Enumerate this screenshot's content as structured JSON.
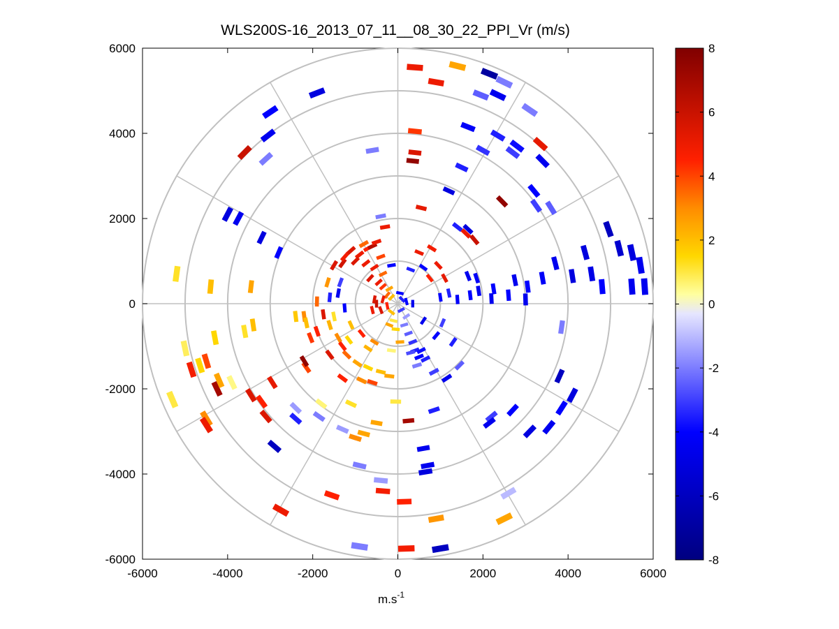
{
  "chart_data": {
    "type": "polar-ppi-scatter",
    "title": "WLS200S-16_2013_07_11__08_30_22_PPI_Vr (m/s)",
    "xlabel": {
      "base": "m.s",
      "superscript": "-1"
    },
    "ylabel": "",
    "xlim": [
      -6000,
      6000
    ],
    "ylim": [
      -6000,
      6000
    ],
    "x_ticks": [
      -6000,
      -4000,
      -2000,
      0,
      2000,
      4000,
      6000
    ],
    "y_ticks": [
      6000,
      4000,
      2000,
      0,
      -2000,
      -4000,
      -6000
    ],
    "x_tick_labels": [
      "-6000",
      "-4000",
      "-2000",
      "0",
      "2000",
      "4000",
      "6000"
    ],
    "y_tick_labels": [
      "6000",
      "4000",
      "2000",
      "0",
      "-2000",
      "-4000",
      "-6000"
    ],
    "range_rings_m": [
      1000,
      2000,
      3000,
      4000,
      5000,
      6000
    ],
    "radial_spokes_deg": [
      0,
      30,
      60,
      90,
      120,
      150,
      180,
      210,
      240,
      270,
      300,
      330
    ],
    "colorbar": {
      "min": -8,
      "max": 8,
      "ticks": [
        8,
        6,
        4,
        2,
        0,
        -2,
        -4,
        -6,
        -8
      ],
      "tick_labels": [
        "8",
        "6",
        "4",
        "2",
        "0",
        "-2",
        "-4",
        "-6",
        "-8"
      ],
      "stops": [
        {
          "v": -8,
          "color": "#000080"
        },
        {
          "v": -4,
          "color": "#0000ff"
        },
        {
          "v": -0.3,
          "color": "#e6e6ff"
        },
        {
          "v": 0.3,
          "color": "#ffffa0"
        },
        {
          "v": 1.5,
          "color": "#ffd700"
        },
        {
          "v": 3,
          "color": "#ff8c00"
        },
        {
          "v": 4.5,
          "color": "#ff2000"
        },
        {
          "v": 8,
          "color": "#800000"
        }
      ]
    },
    "points": [
      {
        "x": 400,
        "y": 5550,
        "v": 5
      },
      {
        "x": 1400,
        "y": 5580,
        "v": 2.5
      },
      {
        "x": 2150,
        "y": 5400,
        "v": -7
      },
      {
        "x": 2500,
        "y": 5200,
        "v": -2
      },
      {
        "x": 900,
        "y": 5200,
        "v": 5
      },
      {
        "x": 1950,
        "y": 4900,
        "v": -2.5
      },
      {
        "x": 2350,
        "y": 4900,
        "v": -4.5
      },
      {
        "x": 3100,
        "y": 4550,
        "v": -2
      },
      {
        "x": 1650,
        "y": 4150,
        "v": -4.2
      },
      {
        "x": 2350,
        "y": 3950,
        "v": -3.5
      },
      {
        "x": 2800,
        "y": 3700,
        "v": -3.8
      },
      {
        "x": 3350,
        "y": 3750,
        "v": 5.2
      },
      {
        "x": 400,
        "y": 4050,
        "v": 4.2
      },
      {
        "x": 2000,
        "y": 3600,
        "v": -3.2
      },
      {
        "x": 2700,
        "y": 3550,
        "v": -3
      },
      {
        "x": 3400,
        "y": 3350,
        "v": -4.5
      },
      {
        "x": 1500,
        "y": 3200,
        "v": -3.5
      },
      {
        "x": 400,
        "y": 3550,
        "v": 5.5
      },
      {
        "x": 350,
        "y": 3350,
        "v": 7.5
      },
      {
        "x": 1200,
        "y": 2650,
        "v": -5
      },
      {
        "x": 3200,
        "y": 2650,
        "v": -4
      },
      {
        "x": 2450,
        "y": 2400,
        "v": 7.5
      },
      {
        "x": 3250,
        "y": 2300,
        "v": -3
      },
      {
        "x": 3600,
        "y": 2250,
        "v": -2.5
      },
      {
        "x": 550,
        "y": 2250,
        "v": 5.2
      },
      {
        "x": 1400,
        "y": 1800,
        "v": -3.5
      },
      {
        "x": 1650,
        "y": 1750,
        "v": -5
      },
      {
        "x": 1800,
        "y": 1500,
        "v": 6
      },
      {
        "x": 1600,
        "y": 1650,
        "v": 5
      },
      {
        "x": -1900,
        "y": 4950,
        "v": -5
      },
      {
        "x": -3000,
        "y": 4500,
        "v": -4
      },
      {
        "x": -3050,
        "y": 3950,
        "v": -4.5
      },
      {
        "x": -3600,
        "y": 3550,
        "v": 6
      },
      {
        "x": -3100,
        "y": 3400,
        "v": -2
      },
      {
        "x": -600,
        "y": 3600,
        "v": -2
      },
      {
        "x": -4000,
        "y": 2100,
        "v": -5
      },
      {
        "x": -3750,
        "y": 2000,
        "v": -4.5
      },
      {
        "x": -3200,
        "y": 1550,
        "v": -5
      },
      {
        "x": -2800,
        "y": 1200,
        "v": -4
      },
      {
        "x": 4950,
        "y": 1750,
        "v": -6
      },
      {
        "x": 5200,
        "y": 1300,
        "v": -5.5
      },
      {
        "x": 5500,
        "y": 1200,
        "v": -5
      },
      {
        "x": 5700,
        "y": 900,
        "v": -4.5
      },
      {
        "x": 4400,
        "y": 1200,
        "v": -5
      },
      {
        "x": 3700,
        "y": 950,
        "v": -4.5
      },
      {
        "x": 4100,
        "y": 650,
        "v": -5
      },
      {
        "x": 4550,
        "y": 700,
        "v": -4.8
      },
      {
        "x": 3400,
        "y": 600,
        "v": -4.2
      },
      {
        "x": 2750,
        "y": 550,
        "v": -4.5
      },
      {
        "x": 3050,
        "y": 400,
        "v": -4
      },
      {
        "x": 5500,
        "y": 400,
        "v": -4.5
      },
      {
        "x": 5800,
        "y": 400,
        "v": -4.5
      },
      {
        "x": 4800,
        "y": 400,
        "v": -4
      },
      {
        "x": 2250,
        "y": 350,
        "v": -4
      },
      {
        "x": 1900,
        "y": 300,
        "v": -4.5
      },
      {
        "x": 2600,
        "y": 200,
        "v": -4
      },
      {
        "x": 3000,
        "y": 100,
        "v": -4.5
      },
      {
        "x": 1700,
        "y": 200,
        "v": -4
      },
      {
        "x": 1400,
        "y": 100,
        "v": -4.2
      },
      {
        "x": 2200,
        "y": 120,
        "v": -4.5
      },
      {
        "x": 1200,
        "y": 250,
        "v": -3.5
      },
      {
        "x": 1000,
        "y": 150,
        "v": -4
      },
      {
        "x": 3850,
        "y": -550,
        "v": -2
      },
      {
        "x": 3800,
        "y": -1700,
        "v": -6
      },
      {
        "x": 4100,
        "y": -2150,
        "v": -5
      },
      {
        "x": 3850,
        "y": -2450,
        "v": -4
      },
      {
        "x": 3550,
        "y": -2900,
        "v": -4.5
      },
      {
        "x": 3100,
        "y": -3000,
        "v": -5
      },
      {
        "x": 2700,
        "y": -2500,
        "v": -4
      },
      {
        "x": 2200,
        "y": -2650,
        "v": -3
      },
      {
        "x": 2150,
        "y": -2800,
        "v": -4.5
      },
      {
        "x": 850,
        "y": -2500,
        "v": -3.5
      },
      {
        "x": 1150,
        "y": -1750,
        "v": -4.5
      },
      {
        "x": 600,
        "y": -3400,
        "v": -4.5
      },
      {
        "x": 700,
        "y": -3800,
        "v": -4.5
      },
      {
        "x": 650,
        "y": -3950,
        "v": -5
      },
      {
        "x": 2600,
        "y": -4450,
        "v": -1
      },
      {
        "x": 2500,
        "y": -5050,
        "v": 2.5
      },
      {
        "x": 900,
        "y": -5050,
        "v": 2.8
      },
      {
        "x": 150,
        "y": -4650,
        "v": 4.5
      },
      {
        "x": 200,
        "y": -5750,
        "v": 4.8
      },
      {
        "x": 1000,
        "y": -5750,
        "v": -6
      },
      {
        "x": 250,
        "y": -2750,
        "v": 7
      },
      {
        "x": 850,
        "y": -1600,
        "v": -3
      },
      {
        "x": -2400,
        "y": -2450,
        "v": -1.5
      },
      {
        "x": -1800,
        "y": -2350,
        "v": 0.6
      },
      {
        "x": -1850,
        "y": -2650,
        "v": -2
      },
      {
        "x": -1100,
        "y": -2350,
        "v": 1.2
      },
      {
        "x": -2400,
        "y": -2700,
        "v": -3.5
      },
      {
        "x": -1300,
        "y": -2950,
        "v": -1.5
      },
      {
        "x": -800,
        "y": -3050,
        "v": 2.5
      },
      {
        "x": -1000,
        "y": -3150,
        "v": 3
      },
      {
        "x": -500,
        "y": -2800,
        "v": 2.5
      },
      {
        "x": -50,
        "y": -2300,
        "v": 1
      },
      {
        "x": -3450,
        "y": -2150,
        "v": 5.5
      },
      {
        "x": -3200,
        "y": -2300,
        "v": 4.5
      },
      {
        "x": -3100,
        "y": -2650,
        "v": 5.5
      },
      {
        "x": -2950,
        "y": -1850,
        "v": 5.2
      },
      {
        "x": -2150,
        "y": -1500,
        "v": 4
      },
      {
        "x": -4250,
        "y": -2000,
        "v": 7
      },
      {
        "x": -4500,
        "y": -2700,
        "v": 3
      },
      {
        "x": -4500,
        "y": -2850,
        "v": 5
      },
      {
        "x": -4200,
        "y": -1800,
        "v": 2.5
      },
      {
        "x": -3900,
        "y": -1850,
        "v": 0.5
      },
      {
        "x": -5000,
        "y": -1050,
        "v": 0.8
      },
      {
        "x": -5300,
        "y": -2250,
        "v": 1
      },
      {
        "x": -4850,
        "y": -1550,
        "v": 4.8
      },
      {
        "x": -4650,
        "y": -1450,
        "v": 1.5
      },
      {
        "x": -2200,
        "y": -1350,
        "v": 7.5
      },
      {
        "x": -2900,
        "y": -3350,
        "v": -6
      },
      {
        "x": -900,
        "y": -3800,
        "v": -2
      },
      {
        "x": -350,
        "y": -4400,
        "v": 4.8
      },
      {
        "x": -400,
        "y": -4150,
        "v": -1.5
      },
      {
        "x": -1550,
        "y": -4500,
        "v": 4.5
      },
      {
        "x": -2750,
        "y": -4850,
        "v": 5
      },
      {
        "x": -900,
        "y": -5700,
        "v": -2
      },
      {
        "x": -2400,
        "y": -300,
        "v": 1.8
      },
      {
        "x": -2200,
        "y": -300,
        "v": 3
      },
      {
        "x": -3450,
        "y": 400,
        "v": 2.5
      },
      {
        "x": -3600,
        "y": -650,
        "v": 1.2
      },
      {
        "x": -3400,
        "y": -500,
        "v": 2
      },
      {
        "x": -4400,
        "y": 400,
        "v": 2
      },
      {
        "x": -4300,
        "y": -800,
        "v": 1.5
      },
      {
        "x": -5200,
        "y": 700,
        "v": 1.2
      },
      {
        "x": -4500,
        "y": -1350,
        "v": 4
      },
      {
        "x": -700,
        "y": 1300,
        "v": 4.5
      },
      {
        "x": -900,
        "y": 1150,
        "v": 5
      },
      {
        "x": -1000,
        "y": 1000,
        "v": 5.5
      },
      {
        "x": -750,
        "y": 950,
        "v": 5
      },
      {
        "x": -550,
        "y": 850,
        "v": 5
      },
      {
        "x": -650,
        "y": 600,
        "v": 5.5
      },
      {
        "x": -450,
        "y": 500,
        "v": 5
      },
      {
        "x": -350,
        "y": 400,
        "v": 4.2
      },
      {
        "x": -250,
        "y": 200,
        "v": 3.5
      },
      {
        "x": -150,
        "y": 150,
        "v": 2
      },
      {
        "x": -1100,
        "y": 1250,
        "v": 5.5
      },
      {
        "x": -800,
        "y": 1400,
        "v": 3.5
      },
      {
        "x": -1300,
        "y": 950,
        "v": 5.8
      },
      {
        "x": -1250,
        "y": 1100,
        "v": 4.8
      },
      {
        "x": -1500,
        "y": 900,
        "v": 5.5
      },
      {
        "x": -600,
        "y": 1350,
        "v": 6.5
      },
      {
        "x": -500,
        "y": 1450,
        "v": 5
      },
      {
        "x": -400,
        "y": 1100,
        "v": 4
      },
      {
        "x": -350,
        "y": 700,
        "v": 3.5
      },
      {
        "x": -200,
        "y": 350,
        "v": 2.5
      },
      {
        "x": -350,
        "y": 100,
        "v": 5
      },
      {
        "x": -500,
        "y": 0,
        "v": 6
      },
      {
        "x": -400,
        "y": -150,
        "v": 5.5
      },
      {
        "x": -250,
        "y": -50,
        "v": 4.5
      },
      {
        "x": -150,
        "y": -200,
        "v": 2
      },
      {
        "x": -100,
        "y": -400,
        "v": 1
      },
      {
        "x": -50,
        "y": -600,
        "v": 1.5
      },
      {
        "x": -200,
        "y": -500,
        "v": 2.5
      },
      {
        "x": -600,
        "y": -150,
        "v": 5
      },
      {
        "x": -550,
        "y": 100,
        "v": 5.5
      },
      {
        "x": 150,
        "y": -500,
        "v": -2
      },
      {
        "x": 250,
        "y": -700,
        "v": -2.5
      },
      {
        "x": 350,
        "y": -900,
        "v": -3.2
      },
      {
        "x": 400,
        "y": -1100,
        "v": -3.5
      },
      {
        "x": 500,
        "y": -1250,
        "v": -4
      },
      {
        "x": 550,
        "y": -1100,
        "v": -3.8
      },
      {
        "x": 300,
        "y": -1150,
        "v": -2.8
      },
      {
        "x": 450,
        "y": -1450,
        "v": -2
      },
      {
        "x": 650,
        "y": -1300,
        "v": -3.5
      },
      {
        "x": 200,
        "y": -300,
        "v": -1.5
      },
      {
        "x": 80,
        "y": -150,
        "v": -3
      },
      {
        "x": 100,
        "y": 100,
        "v": -3.5
      },
      {
        "x": 200,
        "y": 50,
        "v": -4
      },
      {
        "x": 350,
        "y": 0,
        "v": -4.5
      },
      {
        "x": 50,
        "y": 250,
        "v": -4
      },
      {
        "x": -2150,
        "y": -450,
        "v": 2
      },
      {
        "x": -1900,
        "y": 50,
        "v": 3.5
      },
      {
        "x": -1600,
        "y": -500,
        "v": 2.2
      },
      {
        "x": -1400,
        "y": -800,
        "v": 3
      },
      {
        "x": -1150,
        "y": -850,
        "v": 1.5
      },
      {
        "x": -1100,
        "y": -500,
        "v": 2
      },
      {
        "x": -1500,
        "y": -300,
        "v": 1.2
      },
      {
        "x": -1200,
        "y": -1200,
        "v": 3.5
      },
      {
        "x": -950,
        "y": -1400,
        "v": 2.5
      },
      {
        "x": -700,
        "y": -1500,
        "v": 1.5
      },
      {
        "x": -400,
        "y": -1600,
        "v": 2
      },
      {
        "x": -200,
        "y": -1700,
        "v": 2.5
      },
      {
        "x": -1300,
        "y": -1000,
        "v": 4.5
      },
      {
        "x": -1650,
        "y": 500,
        "v": 2.8
      },
      {
        "x": -1750,
        "y": -250,
        "v": 5.5
      },
      {
        "x": -1900,
        "y": -650,
        "v": 4.5
      },
      {
        "x": -700,
        "y": -1050,
        "v": 2.2
      },
      {
        "x": -550,
        "y": -900,
        "v": 3
      },
      {
        "x": -850,
        "y": -700,
        "v": 4.5
      },
      {
        "x": 500,
        "y": 1200,
        "v": 5
      },
      {
        "x": 800,
        "y": 1300,
        "v": 4.8
      },
      {
        "x": 950,
        "y": 900,
        "v": 5
      },
      {
        "x": 1100,
        "y": 600,
        "v": 5.2
      },
      {
        "x": 750,
        "y": 600,
        "v": 4.5
      },
      {
        "x": 600,
        "y": 850,
        "v": -4
      },
      {
        "x": 300,
        "y": 800,
        "v": -3.5
      },
      {
        "x": -150,
        "y": 900,
        "v": -4
      },
      {
        "x": -1400,
        "y": 250,
        "v": -4.5
      },
      {
        "x": -1600,
        "y": 150,
        "v": -3.5
      },
      {
        "x": -1250,
        "y": -100,
        "v": -4
      },
      {
        "x": -1350,
        "y": 500,
        "v": -3
      },
      {
        "x": -400,
        "y": 2050,
        "v": -2
      },
      {
        "x": -300,
        "y": 1800,
        "v": 5
      },
      {
        "x": 1650,
        "y": 650,
        "v": -4.5
      },
      {
        "x": 1850,
        "y": 600,
        "v": -4.2
      },
      {
        "x": 1050,
        "y": -450,
        "v": -3
      },
      {
        "x": 900,
        "y": -750,
        "v": -4
      },
      {
        "x": 1300,
        "y": -900,
        "v": -3.5
      },
      {
        "x": 600,
        "y": -400,
        "v": -4.5
      },
      {
        "x": -850,
        "y": -1800,
        "v": 3
      },
      {
        "x": -600,
        "y": -1850,
        "v": 4
      },
      {
        "x": -1300,
        "y": -1750,
        "v": 4.5
      },
      {
        "x": 1450,
        "y": -1450,
        "v": -2.5
      },
      {
        "x": -150,
        "y": -1100,
        "v": 0.6
      },
      {
        "x": 50,
        "y": -900,
        "v": 2.5
      },
      {
        "x": -1600,
        "y": -1200,
        "v": 5.5
      },
      {
        "x": -2050,
        "y": -800,
        "v": 4.2
      }
    ]
  }
}
